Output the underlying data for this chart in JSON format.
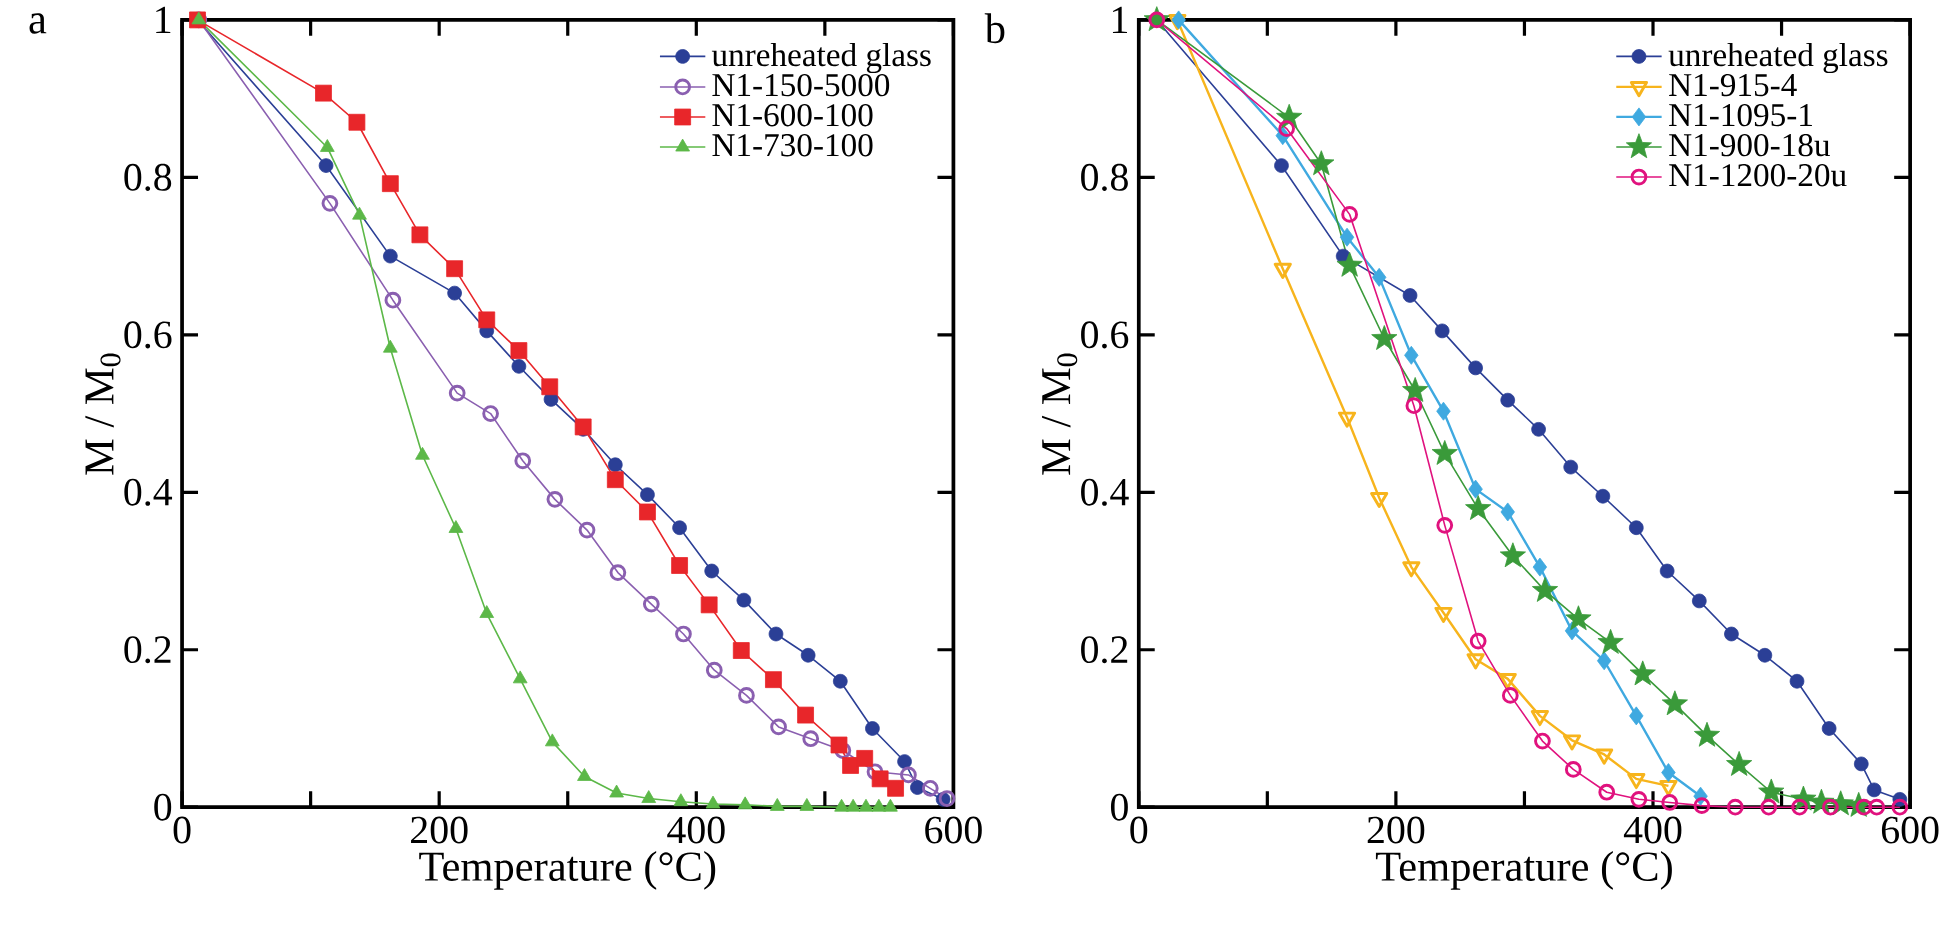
{
  "chart_data": [
    {
      "type": "line",
      "xlabel": "Temperature (°C)",
      "ylabel": "M / M$_{0}$",
      "annotations": [
        "a"
      ],
      "xlim": [
        0,
        600
      ],
      "ylim": [
        0,
        1
      ],
      "xticks": [
        0,
        {
          "value": 100,
          "label": null
        },
        200,
        {
          "value": 300,
          "label": null
        },
        400,
        {
          "value": 500,
          "label": null
        },
        600
      ],
      "yticks": [
        0,
        0.2,
        0.4,
        0.6,
        0.8,
        1
      ],
      "legend": "top right",
      "line_style": "solid",
      "series": [
        {
          "name": "unreheated glass",
          "color": "#2b3f96",
          "marker": "circle",
          "x": [
            12,
            112,
            162,
            212,
            237,
            262,
            287,
            312,
            337,
            362,
            387,
            412,
            437,
            462,
            487,
            512,
            537,
            562,
            572,
            592
          ],
          "values": [
            1.0,
            0.815,
            0.7,
            0.653,
            0.605,
            0.56,
            0.518,
            0.48,
            0.435,
            0.397,
            0.355,
            0.3,
            0.263,
            0.22,
            0.193,
            0.16,
            0.1,
            0.058,
            0.025,
            0.01
          ]
        },
        {
          "name": "N1-150-5000",
          "color": "#8a5fb0",
          "marker": "circle-open",
          "x": [
            13,
            115,
            164,
            214,
            240,
            265,
            290,
            315,
            339,
            365,
            390,
            414,
            439,
            464,
            489,
            514,
            539,
            565,
            582,
            595
          ],
          "values": [
            1.0,
            0.767,
            0.644,
            0.526,
            0.5,
            0.44,
            0.391,
            0.352,
            0.298,
            0.258,
            0.22,
            0.174,
            0.142,
            0.102,
            0.087,
            0.072,
            0.045,
            0.041,
            0.024,
            0.011
          ]
        },
        {
          "name": "N1-600-100",
          "color": "#e8262a",
          "marker": "square",
          "x": [
            12,
            110,
            136,
            162,
            185,
            212,
            237,
            262,
            286,
            312,
            337,
            362,
            387,
            410,
            435,
            460,
            485,
            511,
            520,
            531,
            543,
            555
          ],
          "values": [
            1.0,
            0.907,
            0.87,
            0.792,
            0.727,
            0.684,
            0.619,
            0.58,
            0.534,
            0.483,
            0.416,
            0.375,
            0.307,
            0.257,
            0.199,
            0.162,
            0.117,
            0.079,
            0.053,
            0.062,
            0.036,
            0.024
          ]
        },
        {
          "name": "N1-730-100",
          "color": "#5cb848",
          "marker": "triangle",
          "x": [
            13,
            113,
            138,
            162,
            187,
            213,
            237,
            263,
            288,
            313,
            338,
            363,
            388,
            413,
            438,
            463,
            486,
            513,
            522,
            532,
            542,
            551
          ],
          "values": [
            1.0,
            0.838,
            0.752,
            0.583,
            0.447,
            0.354,
            0.246,
            0.163,
            0.083,
            0.039,
            0.018,
            0.011,
            0.007,
            0.004,
            0.003,
            0.001,
            0.001,
            0.0,
            0.0,
            0.0,
            0.0,
            0.0
          ]
        }
      ]
    },
    {
      "type": "line",
      "xlabel": "Temperature (°C)",
      "ylabel": "M / M$_{0}$",
      "annotations": [
        "b"
      ],
      "xlim": [
        0,
        600
      ],
      "ylim": [
        0,
        1
      ],
      "xticks": [
        0,
        {
          "value": 100,
          "label": null
        },
        200,
        {
          "value": 300,
          "label": null
        },
        400,
        {
          "value": 500,
          "label": null
        },
        600
      ],
      "yticks": [
        0,
        0.2,
        0.4,
        0.6,
        0.8,
        1
      ],
      "legend": "top right",
      "line_style": "solid",
      "series": [
        {
          "name": "unreheated glass",
          "color": "#2b3f96",
          "marker": "circle",
          "x": [
            14,
            111,
            159,
            211,
            236,
            262,
            287,
            311,
            336,
            361,
            387,
            411,
            436,
            461,
            487,
            512,
            537,
            562,
            572,
            592
          ],
          "values": [
            1.0,
            0.815,
            0.7,
            0.65,
            0.605,
            0.558,
            0.517,
            0.48,
            0.432,
            0.395,
            0.355,
            0.3,
            0.262,
            0.22,
            0.193,
            0.16,
            0.1,
            0.055,
            0.022,
            0.01
          ]
        },
        {
          "name": "N1-915-4",
          "color": "#f7b41c",
          "marker": "triangle-down-open",
          "x": [
            30,
            112,
            162,
            187,
            212,
            237,
            262,
            287,
            312,
            337,
            362,
            387,
            412
          ],
          "values": [
            1.0,
            0.684,
            0.495,
            0.393,
            0.305,
            0.247,
            0.188,
            0.163,
            0.116,
            0.085,
            0.067,
            0.036,
            0.027
          ]
        },
        {
          "name": "N1-1095-1",
          "color": "#3fa9e0",
          "marker": "diamond",
          "x": [
            31,
            112,
            162,
            187,
            212,
            237,
            262,
            287,
            312,
            337,
            362,
            387,
            412,
            437
          ],
          "values": [
            1.0,
            0.853,
            0.724,
            0.673,
            0.574,
            0.503,
            0.404,
            0.375,
            0.305,
            0.224,
            0.186,
            0.116,
            0.044,
            0.014
          ]
        },
        {
          "name": "N1-900-18u",
          "color": "#3a9a3a",
          "marker": "star",
          "x": [
            14,
            117,
            142,
            164,
            191,
            215,
            238,
            264,
            291,
            316,
            342,
            367,
            392,
            417,
            442,
            467,
            492,
            517,
            531,
            546,
            560
          ],
          "values": [
            1.0,
            0.876,
            0.817,
            0.688,
            0.595,
            0.529,
            0.449,
            0.379,
            0.319,
            0.275,
            0.239,
            0.209,
            0.169,
            0.131,
            0.091,
            0.054,
            0.019,
            0.01,
            0.006,
            0.004,
            0.002
          ]
        },
        {
          "name": "N1-1200-20u",
          "color": "#e0127e",
          "marker": "circle-open",
          "x": [
            14,
            115,
            164,
            214,
            238,
            264,
            289,
            314,
            338,
            364,
            389,
            413,
            438,
            464,
            490,
            514,
            538,
            564,
            574,
            592
          ],
          "values": [
            1.0,
            0.862,
            0.753,
            0.51,
            0.358,
            0.211,
            0.142,
            0.084,
            0.048,
            0.019,
            0.01,
            0.006,
            0.002,
            0,
            0,
            0,
            0,
            0,
            0,
            0
          ]
        }
      ]
    }
  ]
}
